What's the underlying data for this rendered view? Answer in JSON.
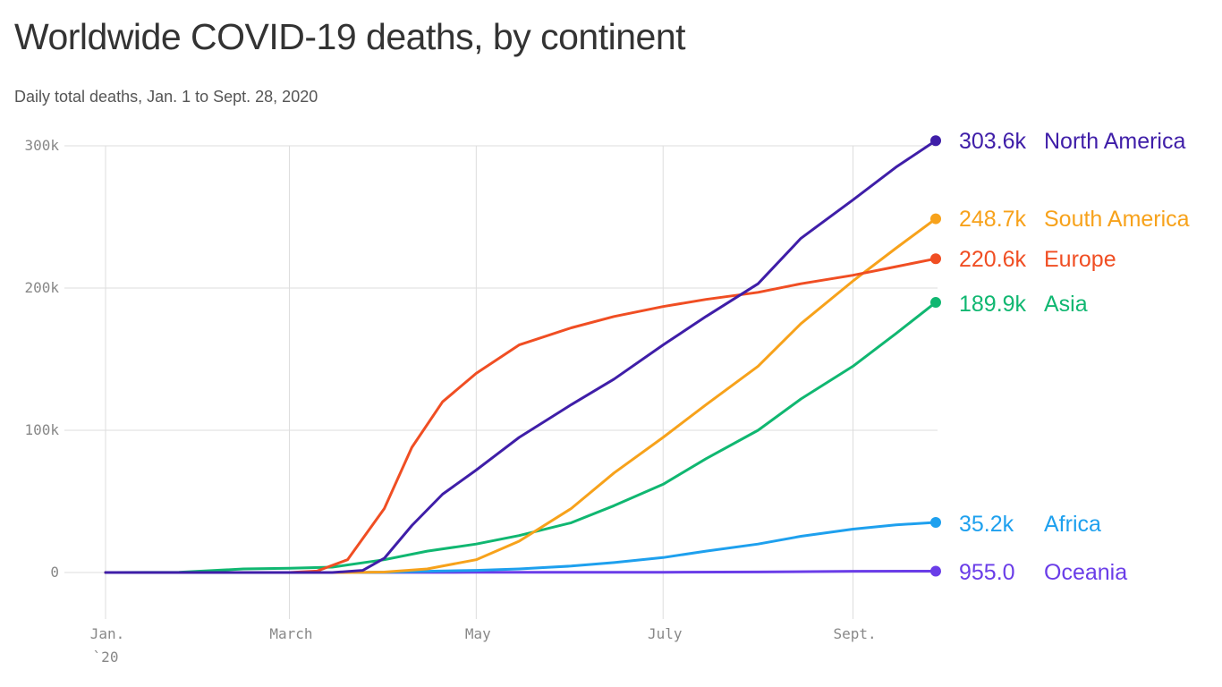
{
  "title": "Worldwide COVID-19 deaths, by continent",
  "subtitle": "Daily total deaths, Jan. 1 to Sept. 28, 2020",
  "chart_data": {
    "type": "line",
    "title": "Worldwide COVID-19 deaths, by continent",
    "subtitle": "Daily total deaths, Jan. 1 to Sept. 28, 2020",
    "xlabel": "",
    "ylabel": "",
    "x_range": [
      "2020-01-01",
      "2020-09-28"
    ],
    "ylim": [
      0,
      300000
    ],
    "y_ticks": [
      {
        "value": 0,
        "label": "0"
      },
      {
        "value": 100000,
        "label": "100k"
      },
      {
        "value": 200000,
        "label": "200k"
      },
      {
        "value": 300000,
        "label": "300k"
      }
    ],
    "x_ticks": [
      {
        "date": "2020-01-01",
        "label": "Jan.",
        "sublabel": "`20"
      },
      {
        "date": "2020-03-01",
        "label": "March"
      },
      {
        "date": "2020-05-01",
        "label": "May"
      },
      {
        "date": "2020-07-01",
        "label": "July"
      },
      {
        "date": "2020-09-01",
        "label": "Sept."
      }
    ],
    "grid": true,
    "legend": "end-of-line labels",
    "series": [
      {
        "name": "North America",
        "value_label": "303.6k",
        "color": "#3f1ea8",
        "points": [
          [
            "2020-01-01",
            0
          ],
          [
            "2020-03-15",
            0
          ],
          [
            "2020-03-25",
            1500
          ],
          [
            "2020-04-01",
            10000
          ],
          [
            "2020-04-10",
            33000
          ],
          [
            "2020-04-20",
            55000
          ],
          [
            "2020-05-01",
            72000
          ],
          [
            "2020-05-15",
            95000
          ],
          [
            "2020-06-01",
            118000
          ],
          [
            "2020-06-15",
            136000
          ],
          [
            "2020-07-01",
            160000
          ],
          [
            "2020-07-15",
            180000
          ],
          [
            "2020-08-01",
            203000
          ],
          [
            "2020-08-15",
            235000
          ],
          [
            "2020-09-01",
            262000
          ],
          [
            "2020-09-15",
            285000
          ],
          [
            "2020-09-28",
            303600
          ]
        ]
      },
      {
        "name": "South America",
        "value_label": "248.7k",
        "color": "#f7a21b",
        "points": [
          [
            "2020-01-01",
            0
          ],
          [
            "2020-03-20",
            0
          ],
          [
            "2020-04-01",
            300
          ],
          [
            "2020-04-15",
            2500
          ],
          [
            "2020-05-01",
            9000
          ],
          [
            "2020-05-15",
            22000
          ],
          [
            "2020-06-01",
            45000
          ],
          [
            "2020-06-15",
            70000
          ],
          [
            "2020-07-01",
            95000
          ],
          [
            "2020-07-15",
            118000
          ],
          [
            "2020-08-01",
            145000
          ],
          [
            "2020-08-15",
            175000
          ],
          [
            "2020-09-01",
            205000
          ],
          [
            "2020-09-15",
            228000
          ],
          [
            "2020-09-28",
            248700
          ]
        ]
      },
      {
        "name": "Europe",
        "value_label": "220.6k",
        "color": "#f04e23",
        "points": [
          [
            "2020-01-01",
            0
          ],
          [
            "2020-02-20",
            0
          ],
          [
            "2020-03-01",
            30
          ],
          [
            "2020-03-10",
            1000
          ],
          [
            "2020-03-20",
            9000
          ],
          [
            "2020-04-01",
            45000
          ],
          [
            "2020-04-10",
            88000
          ],
          [
            "2020-04-20",
            120000
          ],
          [
            "2020-05-01",
            140000
          ],
          [
            "2020-05-15",
            160000
          ],
          [
            "2020-06-01",
            172000
          ],
          [
            "2020-06-15",
            180000
          ],
          [
            "2020-07-01",
            187000
          ],
          [
            "2020-07-15",
            192000
          ],
          [
            "2020-08-01",
            197000
          ],
          [
            "2020-08-15",
            203000
          ],
          [
            "2020-09-01",
            209000
          ],
          [
            "2020-09-15",
            215000
          ],
          [
            "2020-09-28",
            220600
          ]
        ]
      },
      {
        "name": "Asia",
        "value_label": "189.9k",
        "color": "#10b771",
        "points": [
          [
            "2020-01-01",
            0
          ],
          [
            "2020-01-25",
            100
          ],
          [
            "2020-02-15",
            2500
          ],
          [
            "2020-03-01",
            3000
          ],
          [
            "2020-03-15",
            3800
          ],
          [
            "2020-04-01",
            9000
          ],
          [
            "2020-04-15",
            15000
          ],
          [
            "2020-05-01",
            20000
          ],
          [
            "2020-05-15",
            26000
          ],
          [
            "2020-06-01",
            35000
          ],
          [
            "2020-06-15",
            47000
          ],
          [
            "2020-07-01",
            62000
          ],
          [
            "2020-07-15",
            80000
          ],
          [
            "2020-08-01",
            100000
          ],
          [
            "2020-08-15",
            122000
          ],
          [
            "2020-09-01",
            145000
          ],
          [
            "2020-09-15",
            168000
          ],
          [
            "2020-09-28",
            189900
          ]
        ]
      },
      {
        "name": "Africa",
        "value_label": "35.2k",
        "color": "#1ea0ee",
        "points": [
          [
            "2020-01-01",
            0
          ],
          [
            "2020-03-15",
            0
          ],
          [
            "2020-04-01",
            200
          ],
          [
            "2020-04-15",
            900
          ],
          [
            "2020-05-01",
            1500
          ],
          [
            "2020-05-15",
            2500
          ],
          [
            "2020-06-01",
            4500
          ],
          [
            "2020-06-15",
            7000
          ],
          [
            "2020-07-01",
            10500
          ],
          [
            "2020-07-15",
            15000
          ],
          [
            "2020-08-01",
            20000
          ],
          [
            "2020-08-15",
            25500
          ],
          [
            "2020-09-01",
            30500
          ],
          [
            "2020-09-15",
            33500
          ],
          [
            "2020-09-28",
            35200
          ]
        ]
      },
      {
        "name": "Oceania",
        "value_label": "955.0",
        "color": "#6a3de8",
        "points": [
          [
            "2020-01-01",
            0
          ],
          [
            "2020-03-15",
            0
          ],
          [
            "2020-04-01",
            50
          ],
          [
            "2020-05-01",
            130
          ],
          [
            "2020-07-01",
            170
          ],
          [
            "2020-08-01",
            400
          ],
          [
            "2020-09-01",
            850
          ],
          [
            "2020-09-28",
            955
          ]
        ]
      }
    ]
  }
}
